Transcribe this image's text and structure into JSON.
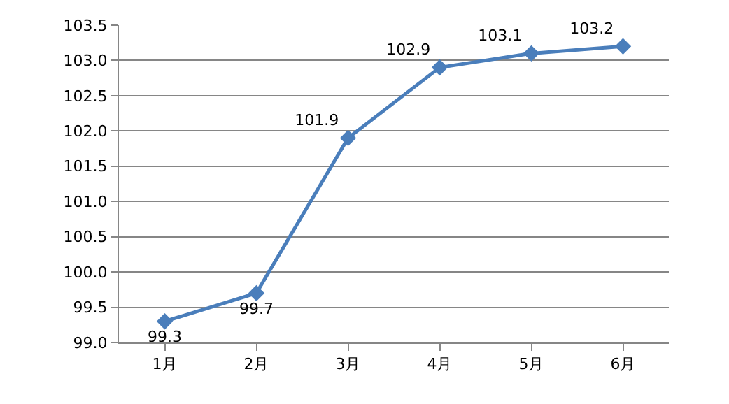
{
  "chart_data": {
    "type": "line",
    "categories": [
      "1月",
      "2月",
      "3月",
      "4月",
      "5月",
      "6月"
    ],
    "series": [
      {
        "color": "#4a7ebb",
        "values": [
          99.3,
          99.7,
          101.9,
          102.9,
          103.1,
          103.2
        ]
      }
    ],
    "ylim": [
      99.0,
      103.5
    ],
    "yticks": [
      {
        "value": 99.0,
        "label": "99.0"
      },
      {
        "value": 99.5,
        "label": "99.5"
      },
      {
        "value": 100.0,
        "label": "100.0"
      },
      {
        "value": 100.5,
        "label": "100.5"
      },
      {
        "value": 101.0,
        "label": "101.0"
      },
      {
        "value": 101.5,
        "label": "101.5"
      },
      {
        "value": 102.0,
        "label": "102.0"
      },
      {
        "value": 102.5,
        "label": "102.5"
      },
      {
        "value": 103.0,
        "label": "103.0"
      },
      {
        "value": 103.5,
        "label": "103.5"
      }
    ],
    "grid": "y",
    "marker": "diamond",
    "line_style": "solid",
    "data_labels": true
  }
}
